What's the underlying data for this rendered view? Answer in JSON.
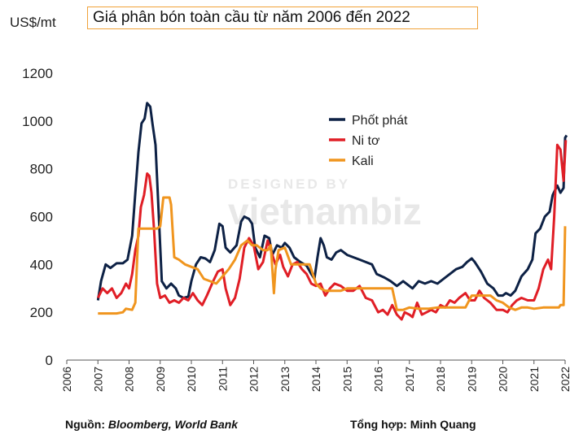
{
  "header": {
    "unit_label": "US$/mt",
    "title": "Giá phân bón toàn cầu từ năm 2006 đến 2022"
  },
  "watermark": {
    "line1": "DESIGNED BY",
    "line2": "vietnambiz"
  },
  "footer": {
    "source_prefix": "Nguồn: ",
    "source_value": "Bloomberg, World Bank",
    "compiled": "Tổng hợp: Minh Quang"
  },
  "chart_data": {
    "type": "line",
    "title": "Giá phân bón toàn cầu từ năm 2006 đến 2022",
    "ylabel": "US$/mt",
    "xlabel": "",
    "ylim": [
      0,
      1200
    ],
    "xlim": [
      2006,
      2022
    ],
    "yticks": [
      "0",
      "200",
      "400",
      "600",
      "800",
      "1000",
      "1200"
    ],
    "xticks": [
      "2006",
      "2007",
      "2008",
      "2009",
      "2010",
      "2011",
      "2012",
      "2013",
      "2014",
      "2015",
      "2016",
      "2017",
      "2018",
      "2019",
      "2020",
      "2021",
      "2022"
    ],
    "grid": false,
    "legend_position": "top-right",
    "series": [
      {
        "name": "Phốt phát",
        "color": "#0d2145",
        "points": [
          [
            2007.0,
            250
          ],
          [
            2007.1,
            330
          ],
          [
            2007.25,
            400
          ],
          [
            2007.4,
            385
          ],
          [
            2007.6,
            405
          ],
          [
            2007.8,
            405
          ],
          [
            2007.95,
            420
          ],
          [
            2008.1,
            520
          ],
          [
            2008.2,
            700
          ],
          [
            2008.3,
            870
          ],
          [
            2008.4,
            990
          ],
          [
            2008.5,
            1010
          ],
          [
            2008.58,
            1075
          ],
          [
            2008.68,
            1060
          ],
          [
            2008.75,
            990
          ],
          [
            2008.85,
            900
          ],
          [
            2008.95,
            620
          ],
          [
            2009.05,
            330
          ],
          [
            2009.2,
            300
          ],
          [
            2009.35,
            320
          ],
          [
            2009.5,
            300
          ],
          [
            2009.6,
            270
          ],
          [
            2009.75,
            260
          ],
          [
            2009.9,
            265
          ],
          [
            2010.0,
            330
          ],
          [
            2010.15,
            400
          ],
          [
            2010.3,
            430
          ],
          [
            2010.45,
            425
          ],
          [
            2010.6,
            410
          ],
          [
            2010.75,
            460
          ],
          [
            2010.9,
            570
          ],
          [
            2011.0,
            560
          ],
          [
            2011.1,
            470
          ],
          [
            2011.25,
            450
          ],
          [
            2011.45,
            480
          ],
          [
            2011.6,
            580
          ],
          [
            2011.7,
            600
          ],
          [
            2011.85,
            590
          ],
          [
            2011.95,
            570
          ],
          [
            2012.05,
            470
          ],
          [
            2012.2,
            430
          ],
          [
            2012.35,
            520
          ],
          [
            2012.5,
            510
          ],
          [
            2012.6,
            440
          ],
          [
            2012.75,
            480
          ],
          [
            2012.9,
            470
          ],
          [
            2013.0,
            490
          ],
          [
            2013.15,
            470
          ],
          [
            2013.3,
            430
          ],
          [
            2013.5,
            410
          ],
          [
            2013.7,
            395
          ],
          [
            2013.85,
            360
          ],
          [
            2013.95,
            340
          ],
          [
            2014.05,
            430
          ],
          [
            2014.15,
            510
          ],
          [
            2014.25,
            480
          ],
          [
            2014.35,
            430
          ],
          [
            2014.5,
            420
          ],
          [
            2014.65,
            450
          ],
          [
            2014.8,
            460
          ],
          [
            2015.0,
            440
          ],
          [
            2015.2,
            430
          ],
          [
            2015.4,
            420
          ],
          [
            2015.6,
            410
          ],
          [
            2015.8,
            400
          ],
          [
            2015.95,
            360
          ],
          [
            2016.2,
            345
          ],
          [
            2016.4,
            330
          ],
          [
            2016.6,
            310
          ],
          [
            2016.8,
            330
          ],
          [
            2016.95,
            315
          ],
          [
            2017.1,
            300
          ],
          [
            2017.3,
            330
          ],
          [
            2017.5,
            320
          ],
          [
            2017.7,
            330
          ],
          [
            2017.9,
            320
          ],
          [
            2018.1,
            340
          ],
          [
            2018.3,
            360
          ],
          [
            2018.5,
            380
          ],
          [
            2018.7,
            390
          ],
          [
            2018.85,
            410
          ],
          [
            2019.0,
            425
          ],
          [
            2019.1,
            410
          ],
          [
            2019.3,
            370
          ],
          [
            2019.5,
            320
          ],
          [
            2019.7,
            300
          ],
          [
            2019.85,
            270
          ],
          [
            2020.0,
            270
          ],
          [
            2020.1,
            280
          ],
          [
            2020.25,
            270
          ],
          [
            2020.4,
            290
          ],
          [
            2020.6,
            350
          ],
          [
            2020.8,
            380
          ],
          [
            2020.95,
            420
          ],
          [
            2021.05,
            530
          ],
          [
            2021.2,
            550
          ],
          [
            2021.35,
            600
          ],
          [
            2021.5,
            620
          ],
          [
            2021.6,
            690
          ],
          [
            2021.75,
            730
          ],
          [
            2021.85,
            700
          ],
          [
            2021.95,
            720
          ],
          [
            2022.0,
            930
          ],
          [
            2022.05,
            940
          ]
        ]
      },
      {
        "name": "Ni tơ",
        "color": "#e01e26",
        "points": [
          [
            2007.0,
            260
          ],
          [
            2007.15,
            300
          ],
          [
            2007.3,
            280
          ],
          [
            2007.45,
            300
          ],
          [
            2007.6,
            260
          ],
          [
            2007.75,
            280
          ],
          [
            2007.9,
            320
          ],
          [
            2008.0,
            300
          ],
          [
            2008.1,
            360
          ],
          [
            2008.2,
            460
          ],
          [
            2008.3,
            520
          ],
          [
            2008.38,
            640
          ],
          [
            2008.48,
            690
          ],
          [
            2008.58,
            780
          ],
          [
            2008.65,
            770
          ],
          [
            2008.72,
            700
          ],
          [
            2008.8,
            550
          ],
          [
            2008.9,
            320
          ],
          [
            2009.0,
            260
          ],
          [
            2009.15,
            270
          ],
          [
            2009.3,
            240
          ],
          [
            2009.45,
            250
          ],
          [
            2009.6,
            240
          ],
          [
            2009.75,
            260
          ],
          [
            2009.9,
            250
          ],
          [
            2010.05,
            280
          ],
          [
            2010.2,
            250
          ],
          [
            2010.35,
            230
          ],
          [
            2010.5,
            270
          ],
          [
            2010.7,
            330
          ],
          [
            2010.85,
            370
          ],
          [
            2011.0,
            380
          ],
          [
            2011.1,
            300
          ],
          [
            2011.25,
            230
          ],
          [
            2011.4,
            260
          ],
          [
            2011.55,
            340
          ],
          [
            2011.7,
            470
          ],
          [
            2011.85,
            510
          ],
          [
            2012.0,
            480
          ],
          [
            2012.15,
            380
          ],
          [
            2012.3,
            410
          ],
          [
            2012.45,
            500
          ],
          [
            2012.55,
            460
          ],
          [
            2012.7,
            400
          ],
          [
            2012.85,
            440
          ],
          [
            2012.95,
            390
          ],
          [
            2013.1,
            350
          ],
          [
            2013.25,
            400
          ],
          [
            2013.4,
            410
          ],
          [
            2013.55,
            380
          ],
          [
            2013.7,
            360
          ],
          [
            2013.85,
            320
          ],
          [
            2014.0,
            310
          ],
          [
            2014.15,
            320
          ],
          [
            2014.3,
            270
          ],
          [
            2014.45,
            300
          ],
          [
            2014.6,
            320
          ],
          [
            2014.8,
            310
          ],
          [
            2015.0,
            290
          ],
          [
            2015.2,
            290
          ],
          [
            2015.4,
            310
          ],
          [
            2015.6,
            260
          ],
          [
            2015.8,
            250
          ],
          [
            2016.0,
            200
          ],
          [
            2016.15,
            210
          ],
          [
            2016.3,
            190
          ],
          [
            2016.45,
            230
          ],
          [
            2016.6,
            190
          ],
          [
            2016.75,
            170
          ],
          [
            2016.85,
            200
          ],
          [
            2017.0,
            190
          ],
          [
            2017.1,
            180
          ],
          [
            2017.25,
            240
          ],
          [
            2017.4,
            190
          ],
          [
            2017.55,
            200
          ],
          [
            2017.7,
            210
          ],
          [
            2017.85,
            200
          ],
          [
            2018.0,
            230
          ],
          [
            2018.15,
            220
          ],
          [
            2018.3,
            250
          ],
          [
            2018.45,
            240
          ],
          [
            2018.6,
            260
          ],
          [
            2018.8,
            280
          ],
          [
            2018.95,
            250
          ],
          [
            2019.1,
            250
          ],
          [
            2019.25,
            290
          ],
          [
            2019.4,
            260
          ],
          [
            2019.6,
            240
          ],
          [
            2019.8,
            210
          ],
          [
            2020.0,
            210
          ],
          [
            2020.15,
            200
          ],
          [
            2020.3,
            230
          ],
          [
            2020.45,
            250
          ],
          [
            2020.6,
            260
          ],
          [
            2020.8,
            250
          ],
          [
            2021.0,
            250
          ],
          [
            2021.15,
            300
          ],
          [
            2021.3,
            380
          ],
          [
            2021.45,
            420
          ],
          [
            2021.55,
            380
          ],
          [
            2021.65,
            600
          ],
          [
            2021.75,
            900
          ],
          [
            2021.85,
            880
          ],
          [
            2021.95,
            750
          ],
          [
            2022.02,
            920
          ]
        ]
      },
      {
        "name": "Kali",
        "color": "#f0951e",
        "points": [
          [
            2007.0,
            195
          ],
          [
            2007.3,
            195
          ],
          [
            2007.6,
            195
          ],
          [
            2007.8,
            200
          ],
          [
            2007.9,
            215
          ],
          [
            2008.1,
            210
          ],
          [
            2008.2,
            240
          ],
          [
            2008.3,
            550
          ],
          [
            2008.5,
            550
          ],
          [
            2008.7,
            550
          ],
          [
            2008.9,
            550
          ],
          [
            2009.0,
            560
          ],
          [
            2009.1,
            680
          ],
          [
            2009.3,
            680
          ],
          [
            2009.35,
            650
          ],
          [
            2009.45,
            430
          ],
          [
            2009.6,
            420
          ],
          [
            2009.8,
            400
          ],
          [
            2010.0,
            390
          ],
          [
            2010.2,
            380
          ],
          [
            2010.4,
            340
          ],
          [
            2010.6,
            330
          ],
          [
            2010.8,
            320
          ],
          [
            2011.0,
            350
          ],
          [
            2011.2,
            380
          ],
          [
            2011.4,
            420
          ],
          [
            2011.6,
            480
          ],
          [
            2011.8,
            500
          ],
          [
            2011.95,
            480
          ],
          [
            2012.1,
            480
          ],
          [
            2012.3,
            460
          ],
          [
            2012.45,
            460
          ],
          [
            2012.55,
            480
          ],
          [
            2012.65,
            280
          ],
          [
            2012.7,
            380
          ],
          [
            2012.8,
            460
          ],
          [
            2013.0,
            470
          ],
          [
            2013.2,
            400
          ],
          [
            2013.4,
            400
          ],
          [
            2013.6,
            400
          ],
          [
            2013.8,
            400
          ],
          [
            2014.0,
            320
          ],
          [
            2014.15,
            300
          ],
          [
            2014.3,
            290
          ],
          [
            2014.5,
            290
          ],
          [
            2014.8,
            290
          ],
          [
            2015.0,
            300
          ],
          [
            2015.3,
            300
          ],
          [
            2015.6,
            300
          ],
          [
            2015.9,
            300
          ],
          [
            2016.2,
            300
          ],
          [
            2016.45,
            300
          ],
          [
            2016.6,
            210
          ],
          [
            2016.8,
            210
          ],
          [
            2017.0,
            220
          ],
          [
            2017.3,
            215
          ],
          [
            2017.6,
            215
          ],
          [
            2017.9,
            220
          ],
          [
            2018.2,
            220
          ],
          [
            2018.5,
            220
          ],
          [
            2018.8,
            220
          ],
          [
            2019.0,
            270
          ],
          [
            2019.3,
            270
          ],
          [
            2019.6,
            270
          ],
          [
            2019.8,
            250
          ],
          [
            2020.0,
            240
          ],
          [
            2020.2,
            220
          ],
          [
            2020.4,
            210
          ],
          [
            2020.6,
            220
          ],
          [
            2020.8,
            220
          ],
          [
            2021.0,
            215
          ],
          [
            2021.3,
            220
          ],
          [
            2021.6,
            220
          ],
          [
            2021.8,
            220
          ],
          [
            2021.85,
            230
          ],
          [
            2021.95,
            230
          ],
          [
            2022.0,
            560
          ]
        ]
      }
    ]
  }
}
